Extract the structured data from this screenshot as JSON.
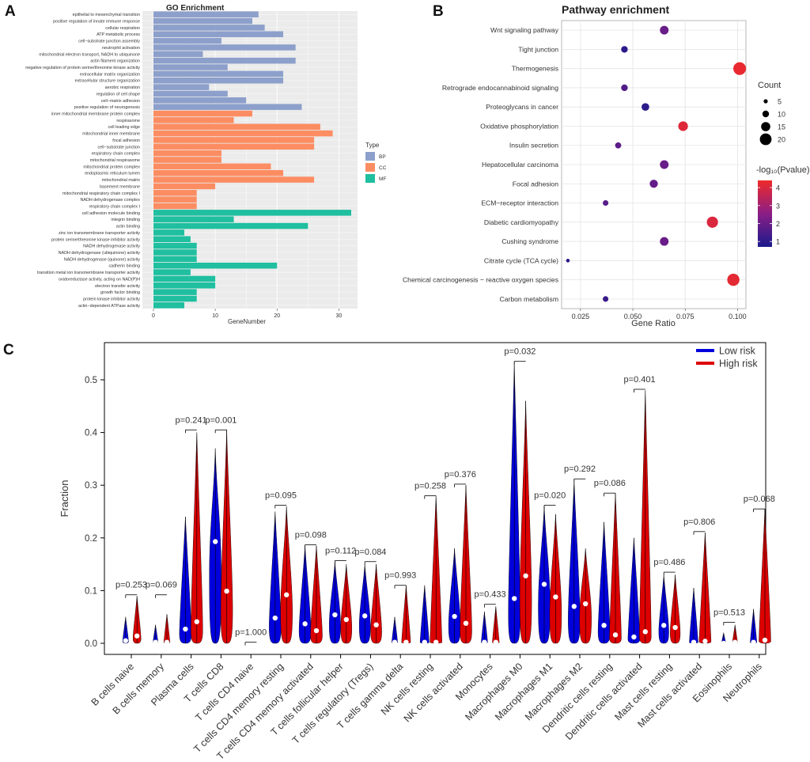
{
  "panels": {
    "a": {
      "label": "A",
      "chart_data": {
        "type": "bar",
        "orientation": "horizontal",
        "title": "GO Enrichment",
        "xlabel": "GeneNumber",
        "xlim": [
          0,
          32
        ],
        "xticks": [
          0,
          10,
          20,
          30
        ],
        "legend": {
          "title": "Type",
          "position": "right",
          "entries": [
            {
              "name": "BP",
              "color": "#8DA0CB"
            },
            {
              "name": "CC",
              "color": "#FC8D62"
            },
            {
              "name": "MF",
              "color": "#1FBFA0"
            }
          ]
        },
        "categories": [
          "epithelial to mesenchymal transition",
          "positive regulation of innate immune response",
          "cellular respiration",
          "ATP metabolic process",
          "cell−substrate junction assembly",
          "neutrophil activation",
          "mitochondrial electron transport, NADH to ubiquinone",
          "actin filament organization",
          "negative regulation of protein serine/threonine kinase activity",
          "extracellular matrix organization",
          "extracellular structure organization",
          "aerobic respiration",
          "regulation of cell shape",
          "cell−matrix adhesion",
          "positive regulation of neurogenesis",
          "inner mitochondrial membrane protein complex",
          "respirasome",
          "cell leading edge",
          "mitochondrial inner membrane",
          "focal adhesion",
          "cell−substrate junction",
          "respiratory chain complex",
          "mitochondrial respirasome",
          "mitochondrial protein complex",
          "endoplasmic reticulum lumen",
          "mitochondrial matrix",
          "basement membrane",
          "mitochondrial respiratory chain complex I",
          "NADH dehydrogenase complex",
          "respiratory chain complex I",
          "cell adhesion molecule binding",
          "integrin binding",
          "actin binding",
          "zinc ion transmembrane transporter activity",
          "protein serine/threonine kinase inhibitor activity",
          "NADH dehydrogenase activity",
          "NADH dehydrogenase (ubiquinone) activity",
          "NADH dehydrogenase (quinone) activity",
          "cadherin binding",
          "transition metal ion transmembrane transporter activity",
          "oxidoreductase activity, acting on NAD(P)H",
          "electron transfer activity",
          "growth factor binding",
          "protein kinase inhibitor activity",
          "actin−dependent ATPase activity"
        ],
        "values": [
          17,
          16,
          18,
          21,
          11,
          23,
          8,
          23,
          12,
          21,
          21,
          9,
          12,
          15,
          24,
          16,
          13,
          27,
          29,
          26,
          26,
          11,
          11,
          19,
          21,
          26,
          10,
          7,
          7,
          7,
          32,
          13,
          25,
          5,
          6,
          7,
          7,
          7,
          20,
          6,
          10,
          10,
          7,
          7,
          5
        ],
        "types": [
          "BP",
          "BP",
          "BP",
          "BP",
          "BP",
          "BP",
          "BP",
          "BP",
          "BP",
          "BP",
          "BP",
          "BP",
          "BP",
          "BP",
          "BP",
          "CC",
          "CC",
          "CC",
          "CC",
          "CC",
          "CC",
          "CC",
          "CC",
          "CC",
          "CC",
          "CC",
          "CC",
          "CC",
          "CC",
          "CC",
          "MF",
          "MF",
          "MF",
          "MF",
          "MF",
          "MF",
          "MF",
          "MF",
          "MF",
          "MF",
          "MF",
          "MF",
          "MF",
          "MF",
          "MF"
        ]
      }
    },
    "b": {
      "label": "B",
      "chart_data": {
        "type": "scatter",
        "title": "Pathway enrichment",
        "xlabel": "Gene Ratio",
        "xlim": [
          0.016,
          0.104
        ],
        "xticks": [
          0.025,
          0.05,
          0.075,
          0.1
        ],
        "xtick_labels": [
          "0.025",
          "0.050",
          "0.075",
          "0.100"
        ],
        "grid": true,
        "categories": [
          "Wnt signaling pathway",
          "Tight junction",
          "Thermogenesis",
          "Retrograde endocannabinoid signaling",
          "Proteoglycans in cancer",
          "Oxidative phosphorylation",
          "Insulin secretion",
          "Hepatocellular carcinoma",
          "Focal adhesion",
          "ECM−receptor interaction",
          "Diabetic cardiomyopathy",
          "Cushing syndrome",
          "Citrate cycle (TCA cycle)",
          "Chemical carcinogenesis − reactive oxygen species",
          "Carbon metabolism"
        ],
        "gene_ratio": [
          0.065,
          0.046,
          0.101,
          0.046,
          0.056,
          0.074,
          0.043,
          0.065,
          0.06,
          0.037,
          0.088,
          0.065,
          0.019,
          0.098,
          0.037
        ],
        "count": [
          14,
          10,
          22,
          10,
          12,
          16,
          9,
          14,
          13,
          8,
          19,
          14,
          4,
          21,
          8
        ],
        "neg_log10_pvalue": [
          2.0,
          1.0,
          4.3,
          1.6,
          1.0,
          4.1,
          1.8,
          2.0,
          1.9,
          1.7,
          4.0,
          2.0,
          0.9,
          4.2,
          1.2
        ],
        "size_legend": {
          "title": "Count",
          "values": [
            5,
            10,
            15,
            20
          ]
        },
        "color_legend": {
          "title": "-log₁₀(Pvalue)",
          "ticks": [
            1,
            2,
            3,
            4
          ],
          "range": [
            0.7,
            4.4
          ],
          "low_color": "#1A1A8C",
          "high_color": "#EE2A2A"
        }
      }
    },
    "c": {
      "label": "C",
      "chart_data": {
        "type": "violin",
        "ylabel": "Fraction",
        "ylim": [
          0,
          0.55
        ],
        "yticks": [
          0.0,
          0.1,
          0.2,
          0.3,
          0.4,
          0.5
        ],
        "ytick_labels": [
          "0.0",
          "0.1",
          "0.2",
          "0.3",
          "0.4",
          "0.5"
        ],
        "legend": {
          "position": "top-right",
          "entries": [
            {
              "name": "Low risk",
              "color": "#0000DD"
            },
            {
              "name": "High risk",
              "color": "#DD0000"
            }
          ]
        },
        "categories": [
          "B cells naive",
          "B cells memory",
          "Plasma cells",
          "T cells CD8",
          "T cells CD4 naive",
          "T cells CD4 memory resting",
          "T cells CD4 memory activated",
          "T cells follicular helper",
          "T cells regulatory (Tregs)",
          "T cells gamma delta",
          "NK cells resting",
          "NK cells activated",
          "Monocytes",
          "Macrophages M0",
          "Macrophages M1",
          "Macrophages M2",
          "Dendritic cells resting",
          "Dendritic cells activated",
          "Mast cells resting",
          "Mast cells activated",
          "Eosinophils",
          "Neutrophils"
        ],
        "pvalues": [
          "p=0.253",
          "p=0.069",
          "p=0.241",
          "p=0.001",
          "p=1.000",
          "p=0.095",
          "p=0.098",
          "p=0.112",
          "p=0.084",
          "p=0.993",
          "p=0.258",
          "p=0.376",
          "p=0.433",
          "p=0.032",
          "p=0.020",
          "p=0.292",
          "p=0.086",
          "p=0.401",
          "p=0.486",
          "p=0.806",
          "p=0.513",
          "p=0.068"
        ],
        "low_risk": {
          "max": [
            0.05,
            0.035,
            0.24,
            0.37,
            0.002,
            0.25,
            0.185,
            0.155,
            0.15,
            0.05,
            0.11,
            0.18,
            0.06,
            0.535,
            0.26,
            0.31,
            0.23,
            0.2,
            0.13,
            0.105,
            0.02,
            0.065
          ],
          "median": [
            0.005,
            0.002,
            0.027,
            0.193,
            0.0,
            0.048,
            0.037,
            0.054,
            0.052,
            0.002,
            0.002,
            0.051,
            0.002,
            0.085,
            0.112,
            0.07,
            0.034,
            0.012,
            0.034,
            0.002,
            0.0,
            0.002
          ]
        },
        "high_risk": {
          "max": [
            0.09,
            0.055,
            0.4,
            0.405,
            0.002,
            0.26,
            0.185,
            0.15,
            0.15,
            0.11,
            0.28,
            0.3,
            0.07,
            0.46,
            0.245,
            0.18,
            0.285,
            0.48,
            0.13,
            0.21,
            0.035,
            0.255
          ],
          "median": [
            0.014,
            0.002,
            0.041,
            0.099,
            0.0,
            0.092,
            0.024,
            0.045,
            0.035,
            0.002,
            0.002,
            0.038,
            0.002,
            0.128,
            0.088,
            0.075,
            0.016,
            0.022,
            0.03,
            0.004,
            0.002,
            0.006
          ]
        },
        "bracket_top": [
          0.092,
          0.092,
          0.405,
          0.405,
          0.002,
          0.262,
          0.187,
          0.157,
          0.155,
          0.11,
          0.28,
          0.302,
          0.074,
          0.535,
          0.262,
          0.312,
          0.285,
          0.482,
          0.135,
          0.212,
          0.04,
          0.255
        ]
      }
    }
  }
}
